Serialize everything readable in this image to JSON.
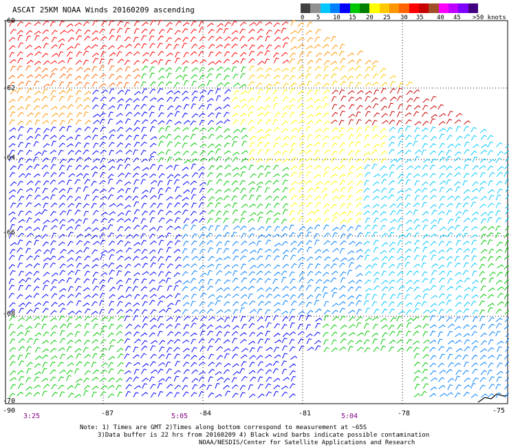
{
  "title": "ASCAT 25KM NOAA Winds 20160209 ascending",
  "legend": {
    "swatches": [
      "#404040",
      "#909090",
      "#00c8ff",
      "#0080ff",
      "#0000ff",
      "#00c800",
      "#008000",
      "#ffff00",
      "#ffc800",
      "#ff9600",
      "#ff6400",
      "#ff0000",
      "#c80000",
      "#a05028",
      "#ff00ff",
      "#c000ff",
      "#8000ff",
      "#400080"
    ],
    "labels": [
      "0",
      "5",
      "10",
      "15",
      "20",
      "25",
      "30",
      "35",
      "40",
      "45",
      ">50 knots"
    ]
  },
  "axes": {
    "lon_labels": [
      "-90",
      "-87",
      "-84",
      "-81",
      "-78",
      "-75"
    ],
    "lat_labels": [
      "-60",
      "-62",
      "-64",
      "-66",
      "-68",
      "-70"
    ]
  },
  "times": [
    "3:25",
    "5:05",
    "5:04"
  ],
  "notes": {
    "line1": "Note: 1) Times are GMT 2)Times along bottom correspond to measurement at ~65S",
    "line2": "3)Data buffer is 22 hrs from 20160209 4) Black wind barbs indicate possible contamination",
    "line3": "NOAA/NESDIS/Center for Satellite Applications and Research"
  }
}
